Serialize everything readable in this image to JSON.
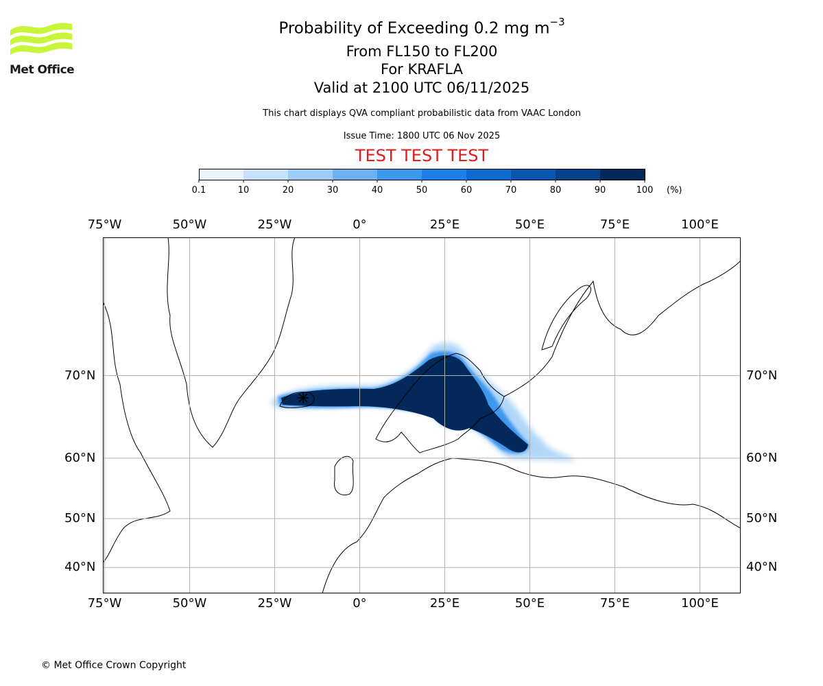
{
  "header": {
    "title_main": "Probability of Exceeding 0.2 mg m",
    "title_sup": "−3",
    "subtitle_levels": "From FL150 to FL200",
    "subtitle_volcano": "For KRAFLA",
    "subtitle_valid": "Valid at 2100 UTC 06/11/2025",
    "disclaimer": "This chart displays QVA compliant probabilistic data from VAAC London",
    "issue_time": "Issue Time: 1800 UTC 06 Nov 2025",
    "test_banner": "TEST TEST TEST"
  },
  "logo": {
    "text": "Met Office",
    "color": "#c8f53a"
  },
  "colorbar": {
    "ticks": [
      "0.1",
      "10",
      "20",
      "30",
      "40",
      "50",
      "60",
      "70",
      "80",
      "90",
      "100"
    ],
    "unit": "(%)",
    "colors": [
      "#eaf4fd",
      "#c6e1fa",
      "#9fccf7",
      "#6cb2f3",
      "#3d97ee",
      "#1c80e6",
      "#0f6bcf",
      "#0a56ae",
      "#06418a",
      "#02295a"
    ]
  },
  "map": {
    "lon_labels": [
      "75°W",
      "50°W",
      "25°W",
      "0°",
      "25°E",
      "50°E",
      "75°E",
      "100°E"
    ],
    "lon_values": [
      -75,
      -50,
      -25,
      0,
      25,
      50,
      75,
      100
    ],
    "lat_labels": [
      "70°N",
      "60°N",
      "50°N",
      "40°N"
    ],
    "lat_values": [
      70,
      60,
      50,
      40
    ],
    "lon_range": [
      -75.5,
      112
    ],
    "lat_range": [
      34,
      80
    ],
    "grid": true,
    "volcano_marker": "Krafla",
    "ash_cloud": [
      {
        "lon": -20,
        "lat": 65.5,
        "prob": 95
      },
      {
        "lon": -10,
        "lat": 66,
        "prob": 95
      },
      {
        "lon": 0,
        "lat": 66,
        "prob": 95
      },
      {
        "lon": 12,
        "lat": 66.5,
        "prob": 95
      },
      {
        "lon": 22,
        "lat": 67,
        "prob": 95
      },
      {
        "lon": 27,
        "lat": 67,
        "prob": 95
      },
      {
        "lon": 28,
        "lat": 64,
        "prob": 95
      },
      {
        "lon": 38,
        "lat": 62.5,
        "prob": 95
      },
      {
        "lon": 47,
        "lat": 60,
        "prob": 90
      }
    ]
  },
  "footer": {
    "copyright": "© Met Office Crown Copyright"
  }
}
